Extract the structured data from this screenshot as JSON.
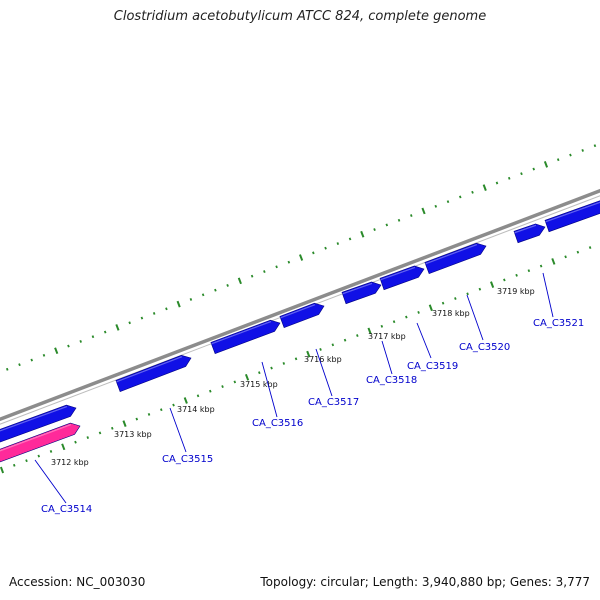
{
  "title": "Clostridium acetobutylicum ATCC 824, complete genome",
  "footer": {
    "accession": "Accession: NC_003030",
    "summary": "Topology: circular; Length: 3,940,880 bp; Genes: 3,777"
  },
  "colors": {
    "gene_forward": "#1010e6",
    "gene_highlight": "#ff2a9a",
    "backbone": "#8c8c8c",
    "ticks": "#2a8a2a",
    "label_line": "#0000cc"
  },
  "tick_labels": [
    "3712 kbp",
    "3713 kbp",
    "3714 kbp",
    "3715 kbp",
    "3716 kbp",
    "3717 kbp",
    "3718 kbp",
    "3719 kbp"
  ],
  "genes": [
    {
      "label": "CA_C3514",
      "color": "highlight"
    },
    {
      "label": "CA_C3515",
      "color": "forward"
    },
    {
      "label": "CA_C3516",
      "color": "forward"
    },
    {
      "label": "CA_C3517",
      "color": "forward"
    },
    {
      "label": "CA_C3518",
      "color": "forward"
    },
    {
      "label": "CA_C3519",
      "color": "forward"
    },
    {
      "label": "CA_C3520",
      "color": "forward"
    },
    {
      "label": "CA_C3521",
      "color": "forward"
    }
  ]
}
